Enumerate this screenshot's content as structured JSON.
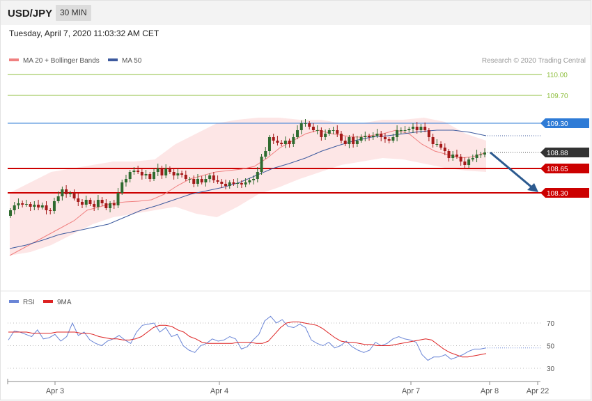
{
  "header": {
    "symbol": "USD/JPY",
    "timeframe": "30 MIN"
  },
  "datetime": "Tuesday, April 7, 2020 11:03:32 AM CET",
  "legend": {
    "ma20_bb": "MA 20 + Bollinger Bands",
    "ma50": "MA 50",
    "credit": "Research © 2020 Trading Central"
  },
  "rsi_legend": {
    "rsi": "RSI",
    "ma9": "9MA"
  },
  "colors": {
    "bull": "#2f6b2f",
    "bear": "#a51a1a",
    "ma20": "#f08080",
    "ma50": "#3d5a9e",
    "band": "#fde3e3",
    "resistance_green": "#8fbf3f",
    "resistance_blue": "#2e7bd6",
    "support_red": "#cc0000",
    "current": "#333333",
    "rsi": "#6a85d6",
    "rsi_ma": "#dd2222"
  },
  "chart_data": [
    {
      "type": "candlestick",
      "title": "USD/JPY 30 MIN",
      "x_ticks": [
        "Apr 3",
        "Apr 4",
        "Apr 7",
        "Apr 8",
        "Apr 22"
      ],
      "ylim": [
        107.35,
        110.1
      ],
      "levels": [
        {
          "name": "resistance",
          "value": 110.0,
          "label": "110.00"
        },
        {
          "name": "resistance",
          "value": 109.7,
          "label": "109.70"
        },
        {
          "name": "resistance",
          "value": 109.3,
          "label": "109.30"
        },
        {
          "name": "current",
          "value": 108.88,
          "label": "108.88"
        },
        {
          "name": "support",
          "value": 108.65,
          "label": "108.65"
        },
        {
          "name": "support",
          "value": 108.3,
          "label": "108.30"
        }
      ],
      "close": [
        108.05,
        108.12,
        108.15,
        108.13,
        108.14,
        108.1,
        108.13,
        108.09,
        108.12,
        108.05,
        108.04,
        108.18,
        108.25,
        108.35,
        108.28,
        108.3,
        108.22,
        108.17,
        108.13,
        108.2,
        108.14,
        108.1,
        108.2,
        108.15,
        108.08,
        108.15,
        108.12,
        108.3,
        108.45,
        108.5,
        108.6,
        108.62,
        108.6,
        108.55,
        108.57,
        108.5,
        108.6,
        108.65,
        108.55,
        108.65,
        108.6,
        108.55,
        108.58,
        108.56,
        108.5,
        108.5,
        108.43,
        108.5,
        108.45,
        108.5,
        108.55,
        108.48,
        108.46,
        108.43,
        108.4,
        108.45,
        108.43,
        108.44,
        108.42,
        108.45,
        108.48,
        108.5,
        108.6,
        108.82,
        108.9,
        109.1,
        109.05,
        109.02,
        109.0,
        109.05,
        109.0,
        109.1,
        109.2,
        109.3,
        109.3,
        109.25,
        109.2,
        109.2,
        109.1,
        109.15,
        109.2,
        109.2,
        109.15,
        109.05,
        109.0,
        109.1,
        109.0,
        109.05,
        109.1,
        109.12,
        109.1,
        109.12,
        109.15,
        109.1,
        109.07,
        109.05,
        109.1,
        109.2,
        109.2,
        109.2,
        109.22,
        109.25,
        109.2,
        109.25,
        109.2,
        109.1,
        109.0,
        109.0,
        108.95,
        108.9,
        108.8,
        108.85,
        108.82,
        108.75,
        108.7,
        108.78,
        108.8,
        108.85,
        108.85,
        108.88
      ],
      "ma20": [
        107.4,
        107.5,
        107.6,
        107.7,
        107.8,
        107.9,
        108.05,
        108.1,
        108.15,
        108.17,
        108.18,
        108.2,
        108.28,
        108.4,
        108.5,
        108.55,
        108.6,
        108.62,
        108.64,
        108.68,
        108.8,
        108.95,
        109.05,
        109.15,
        109.2,
        109.15,
        109.12,
        109.1,
        109.12,
        109.15,
        109.2,
        109.15,
        109.0,
        108.9,
        108.85,
        108.8,
        108.82,
        108.88
      ],
      "ma50": [
        107.5,
        107.55,
        107.62,
        107.7,
        107.75,
        107.8,
        107.85,
        107.95,
        108.05,
        108.12,
        108.2,
        108.28,
        108.33,
        108.38,
        108.45,
        108.55,
        108.65,
        108.72,
        108.8,
        108.9,
        108.98,
        109.05,
        109.1,
        109.12,
        109.15,
        109.18,
        109.2,
        109.2,
        109.17,
        109.12
      ],
      "bb_upper": [
        108.3,
        108.45,
        108.6,
        108.65,
        108.7,
        108.75,
        108.75,
        108.78,
        109.0,
        109.15,
        109.3,
        109.35,
        109.38,
        109.38,
        109.35,
        109.35,
        109.3,
        109.3,
        109.35,
        109.35,
        109.38,
        109.32,
        109.15,
        109.05
      ],
      "bb_lower": [
        107.4,
        107.45,
        107.55,
        107.7,
        107.85,
        107.95,
        108.0,
        108.05,
        108.1,
        108.0,
        107.95,
        108.1,
        108.28,
        108.38,
        108.5,
        108.6,
        108.7,
        108.75,
        108.8,
        108.78,
        108.72,
        108.66,
        108.62,
        108.6
      ],
      "xlabel": "",
      "ylabel": ""
    },
    {
      "type": "line",
      "title": "RSI",
      "ylim": [
        20,
        85
      ],
      "y_ticks": [
        30,
        50,
        70
      ],
      "series": [
        {
          "name": "RSI",
          "values": [
            55,
            63,
            62,
            60,
            58,
            64,
            56,
            57,
            60,
            54,
            58,
            70,
            59,
            62,
            55,
            52,
            50,
            54,
            56,
            59,
            55,
            52,
            62,
            68,
            69,
            70,
            62,
            66,
            58,
            60,
            50,
            46,
            44,
            50,
            52,
            56,
            54,
            55,
            58,
            56,
            47,
            49,
            55,
            60,
            72,
            76,
            70,
            73,
            67,
            66,
            69,
            66,
            55,
            52,
            50,
            53,
            48,
            50,
            54,
            49,
            46,
            44,
            46,
            53,
            50,
            52,
            56,
            58,
            56,
            55,
            53,
            42,
            37,
            40,
            40,
            42,
            38,
            40,
            42,
            45,
            47,
            47,
            48
          ]
        },
        {
          "name": "9MA",
          "values": [
            62,
            62,
            62,
            62,
            61,
            61,
            61,
            61,
            62,
            62,
            62,
            62,
            61,
            61,
            60,
            58,
            57,
            56,
            56,
            55,
            55,
            56,
            58,
            62,
            66,
            68,
            68,
            67,
            64,
            62,
            58,
            56,
            53,
            52,
            52,
            52,
            52,
            52,
            53,
            53,
            53,
            52,
            52,
            54,
            60,
            66,
            70,
            71,
            71,
            70,
            69,
            68,
            65,
            61,
            57,
            54,
            53,
            53,
            52,
            51,
            51,
            50,
            50,
            50,
            51,
            52,
            53,
            54,
            55,
            56,
            55,
            51,
            47,
            44,
            42,
            40,
            40,
            41,
            42,
            43
          ]
        }
      ]
    }
  ]
}
